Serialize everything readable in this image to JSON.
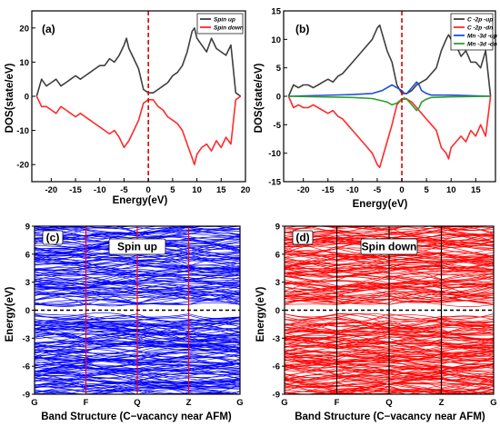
{
  "figure": {
    "panels": [
      {
        "id": "a",
        "label": "(a)",
        "xlabel": "Energy(eV)",
        "ylabel": "DOS(state/eV)"
      },
      {
        "id": "b",
        "label": "(b)",
        "xlabel": "Energy(eV)",
        "ylabel": "DOS(state/eV)"
      },
      {
        "id": "c",
        "label": "(c)",
        "xlabel": "Band Structure (C−vacancy near AFM)",
        "ylabel": "Energy(eV)",
        "annotation": "Spin up"
      },
      {
        "id": "d",
        "label": "(d)",
        "xlabel": "Band Structure (C−vacancy near AFM)",
        "ylabel": "Energy(eV)",
        "annotation": "Spin down"
      }
    ]
  },
  "chart_data": [
    {
      "panel": "a",
      "type": "line",
      "xlabel": "Energy(eV)",
      "ylabel": "DOS(state/eV)",
      "xlim": [
        -24,
        20
      ],
      "ylim": [
        -25,
        25
      ],
      "xticks": [
        -20,
        -15,
        -10,
        -5,
        0,
        5,
        10,
        15,
        20
      ],
      "yticks": [
        -20,
        -10,
        0,
        10,
        20
      ],
      "fermi_level_line": 0,
      "legend_position": "top-right",
      "series": [
        {
          "name": "Spin up",
          "color": "#3f3f3f",
          "x": [
            -23,
            -22,
            -21,
            -20,
            -19,
            -18,
            -17,
            -16,
            -15,
            -14,
            -13,
            -12,
            -11,
            -10,
            -9,
            -8,
            -7,
            -6,
            -5,
            -4.5,
            -4,
            -3,
            -2,
            -1,
            0,
            1,
            2,
            3,
            4,
            5,
            6,
            7,
            8,
            9,
            9.5,
            10,
            11,
            12,
            13,
            14,
            15,
            16,
            17,
            18,
            19
          ],
          "y": [
            0,
            5,
            3,
            4,
            5,
            3,
            4,
            5,
            6,
            5,
            6,
            7,
            8,
            9,
            9,
            11,
            10,
            12,
            15,
            17,
            14,
            11,
            8,
            2,
            1,
            1,
            2,
            3,
            4,
            6,
            7,
            9,
            13,
            19,
            20,
            17,
            15,
            13,
            17,
            14,
            13,
            12,
            15,
            1,
            0
          ]
        },
        {
          "name": "Spin down",
          "color": "#ff2a2a",
          "x": [
            -23,
            -22,
            -21,
            -20,
            -19,
            -18,
            -17,
            -16,
            -15,
            -14,
            -13,
            -12,
            -11,
            -10,
            -9,
            -8,
            -7,
            -6,
            -5,
            -4.5,
            -4,
            -3,
            -2,
            -1,
            0,
            1,
            2,
            3,
            4,
            5,
            6,
            7,
            8,
            9,
            9.5,
            10,
            11,
            12,
            13,
            14,
            15,
            16,
            17,
            18,
            19
          ],
          "y": [
            0,
            -3,
            -3,
            -4,
            -5,
            -3,
            -4,
            -5,
            -6,
            -5,
            -6,
            -7,
            -8,
            -9,
            -10,
            -11,
            -10,
            -12,
            -15,
            -14,
            -13,
            -10,
            -7,
            -2,
            -1,
            -1,
            -3,
            -4,
            -6,
            -7,
            -8,
            -10,
            -14,
            -18,
            -20,
            -17,
            -15,
            -14,
            -16,
            -13,
            -15,
            -12,
            -14,
            -1,
            0
          ]
        }
      ]
    },
    {
      "panel": "b",
      "type": "line",
      "xlabel": "Energy(eV)",
      "ylabel": "DOS(state/eV)",
      "xlim": [
        -24,
        19
      ],
      "ylim": [
        -15,
        15
      ],
      "xticks": [
        -20,
        -15,
        -10,
        -5,
        0,
        5,
        10,
        15
      ],
      "yticks": [
        -15,
        -10,
        -5,
        0,
        5,
        10,
        15
      ],
      "fermi_level_line": 0,
      "legend_position": "top-right",
      "series": [
        {
          "name": "C -2p -up",
          "color": "#3f3f3f",
          "x": [
            -23,
            -22,
            -21,
            -20,
            -19,
            -18,
            -17,
            -16,
            -15,
            -14,
            -13,
            -12,
            -11,
            -10,
            -9,
            -8,
            -7,
            -6,
            -5,
            -4.5,
            -4,
            -3,
            -2,
            -1,
            0,
            1,
            2,
            3,
            4,
            5,
            6,
            7,
            8,
            9,
            9.5,
            10,
            11,
            12,
            13,
            14,
            15,
            16,
            17,
            18
          ],
          "y": [
            0,
            2,
            1.5,
            2,
            2,
            1.5,
            2,
            2.5,
            3,
            2.5,
            3.5,
            4,
            5,
            6,
            7,
            8,
            9,
            10,
            12,
            12.5,
            11,
            8,
            6,
            2,
            0.5,
            0.5,
            1,
            2,
            2.5,
            3,
            4,
            5,
            8,
            10,
            10.8,
            10,
            9,
            7,
            8,
            6,
            6,
            5,
            8,
            0
          ]
        },
        {
          "name": "C -2p -dn",
          "color": "#ff2a2a",
          "x": [
            -23,
            -22,
            -21,
            -20,
            -19,
            -18,
            -17,
            -16,
            -15,
            -14,
            -13,
            -12,
            -11,
            -10,
            -9,
            -8,
            -7,
            -6,
            -5,
            -4.5,
            -4,
            -3,
            -2,
            -1,
            0,
            1,
            2,
            3,
            4,
            5,
            6,
            7,
            8,
            9,
            9.5,
            10,
            11,
            12,
            13,
            14,
            15,
            16,
            17,
            18
          ],
          "y": [
            0,
            -2,
            -1.5,
            -2,
            -2,
            -1.5,
            -2,
            -2.5,
            -3,
            -2.5,
            -3.5,
            -4,
            -5,
            -6,
            -7,
            -8,
            -9,
            -10,
            -12,
            -12.5,
            -11,
            -8,
            -5,
            -1.5,
            -0.5,
            -0.5,
            -1,
            -2,
            -3,
            -4,
            -5,
            -6,
            -9,
            -10,
            -11,
            -9,
            -8,
            -7,
            -8,
            -6,
            -7,
            -5,
            -7,
            0
          ]
        },
        {
          "name": "Mn -3d -up",
          "color": "#1f4fd8",
          "x": [
            -23,
            -10,
            -6,
            -4,
            -3,
            -2,
            -1,
            0,
            0.5,
            1,
            2,
            3,
            3.5,
            4,
            5,
            6,
            10,
            18
          ],
          "y": [
            0,
            0.3,
            0.5,
            1,
            1.5,
            2,
            1.5,
            1,
            0.5,
            0.5,
            1.5,
            2.5,
            2,
            1,
            0.5,
            0.2,
            0.2,
            0
          ]
        },
        {
          "name": "Mn -3d -dn",
          "color": "#2ca02c",
          "x": [
            -23,
            -10,
            -6,
            -4,
            -3,
            -2,
            -1,
            0,
            0.5,
            1,
            2,
            3,
            3.5,
            4,
            5,
            6,
            10,
            18
          ],
          "y": [
            0,
            -0.2,
            -0.4,
            -0.8,
            -1,
            -1.5,
            -1.2,
            -0.5,
            -0.3,
            -0.5,
            -1.5,
            -2.5,
            -2,
            -1,
            -0.5,
            -0.2,
            -0.1,
            0
          ]
        }
      ]
    },
    {
      "panel": "c",
      "type": "line",
      "chart_kind": "band_structure",
      "ylabel": "Energy(eV)",
      "ylim": [
        -9,
        9
      ],
      "yticks": [
        -9,
        -6,
        -3,
        0,
        3,
        6,
        9
      ],
      "kpoints": [
        "G",
        "F",
        "Q",
        "Z",
        "G"
      ],
      "fermi_level_line": 0,
      "annotation": "Spin up",
      "series_color": "#0000ff",
      "divider_color": "#ff0000",
      "gap": [
        -0.3,
        0.2
      ]
    },
    {
      "panel": "d",
      "type": "line",
      "chart_kind": "band_structure",
      "ylabel": "Energy(eV)",
      "ylim": [
        -9,
        9
      ],
      "yticks": [
        -9,
        -6,
        -3,
        0,
        3,
        6,
        9
      ],
      "kpoints": [
        "G",
        "F",
        "Q",
        "Z",
        "G"
      ],
      "fermi_level_line": 0,
      "annotation": "Spin down",
      "series_color": "#ff0000",
      "divider_color": "#000000",
      "gap": [
        -0.3,
        0.2
      ]
    }
  ]
}
